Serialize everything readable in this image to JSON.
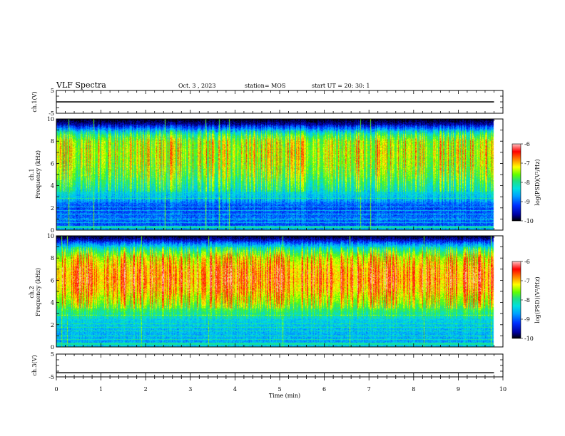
{
  "header": {
    "title": "VLF Spectra",
    "date": "Oct. 3 , 2023",
    "station": "station= MOS",
    "start": "start UT =  20: 30: 1"
  },
  "colors": {
    "spectral_map": [
      "#000000",
      "#0000a0",
      "#0030ff",
      "#00a0ff",
      "#00e0e0",
      "#20e080",
      "#60ff00",
      "#ffff00",
      "#ff8000",
      "#ff0000",
      "#ffc0c0"
    ]
  },
  "chart_data": [
    {
      "type": "line",
      "panel": "ch1-voltage",
      "ylabel": "ch.1(V)",
      "ylim": [
        -5,
        5
      ],
      "yticks": [
        "5",
        "-5"
      ],
      "xlim": [
        0,
        10
      ],
      "series": [
        {
          "x": [
            0,
            9.8
          ],
          "values": [
            0,
            0
          ]
        }
      ]
    },
    {
      "type": "heatmap",
      "panel": "ch1-spectrogram",
      "ylabel": "ch.1\nFrequency (kHz)",
      "ylim": [
        0,
        10
      ],
      "yticks": [
        "0",
        "2",
        "4",
        "6",
        "8",
        "10"
      ],
      "xlim": [
        0,
        10
      ],
      "data_end_x": 9.8,
      "colorbar": {
        "label": "log(PSD)(V²/Hz)",
        "range": [
          -10,
          -6
        ],
        "ticks": [
          "-6",
          "-7",
          "-8",
          "-9",
          "-10"
        ]
      },
      "profile": {
        "freq": [
          0,
          0.5,
          1,
          1.5,
          2,
          2.5,
          3,
          3.5,
          4,
          5,
          6,
          7,
          8,
          8.5,
          9,
          9.5,
          10
        ],
        "log_psd": [
          -8.6,
          -9.2,
          -9.0,
          -9.1,
          -9.2,
          -9.0,
          -8.7,
          -8.5,
          -8.3,
          -7.9,
          -7.7,
          -7.6,
          -7.7,
          -8.1,
          -8.8,
          -9.6,
          -10
        ]
      }
    },
    {
      "type": "heatmap",
      "panel": "ch2-spectrogram",
      "ylabel": "ch.2\nFrequency (kHz)",
      "ylim": [
        0,
        10
      ],
      "yticks": [
        "0",
        "2",
        "4",
        "6",
        "8",
        "10"
      ],
      "xlim": [
        0,
        10
      ],
      "data_end_x": 9.8,
      "colorbar": {
        "label": "log(PSD)(V²/Hz)",
        "range": [
          -10,
          -6
        ],
        "ticks": [
          "-6",
          "-7",
          "-8",
          "-9",
          "-10"
        ]
      },
      "profile": {
        "freq": [
          0,
          0.5,
          1,
          1.5,
          2,
          2.5,
          3,
          3.5,
          4,
          5,
          6,
          7,
          8,
          8.5,
          9,
          9.5,
          10
        ],
        "log_psd": [
          -8.5,
          -8.8,
          -8.7,
          -8.7,
          -8.6,
          -8.5,
          -8.2,
          -7.9,
          -7.6,
          -7.2,
          -7.0,
          -7.1,
          -7.4,
          -7.9,
          -8.5,
          -9.3,
          -10
        ]
      }
    },
    {
      "type": "line",
      "panel": "ch3-voltage",
      "ylabel": "ch.3(V)",
      "ylim": [
        -5,
        5
      ],
      "yticks": [
        "5",
        "-5"
      ],
      "xlim": [
        0,
        10
      ],
      "series": [
        {
          "x": [
            0,
            9.8
          ],
          "values": [
            -3.2,
            -3.2
          ]
        }
      ]
    }
  ],
  "x_axis": {
    "label": "Time  (min)",
    "ticks": [
      "0",
      "1",
      "2",
      "3",
      "4",
      "5",
      "6",
      "7",
      "8",
      "9",
      "10"
    ]
  }
}
